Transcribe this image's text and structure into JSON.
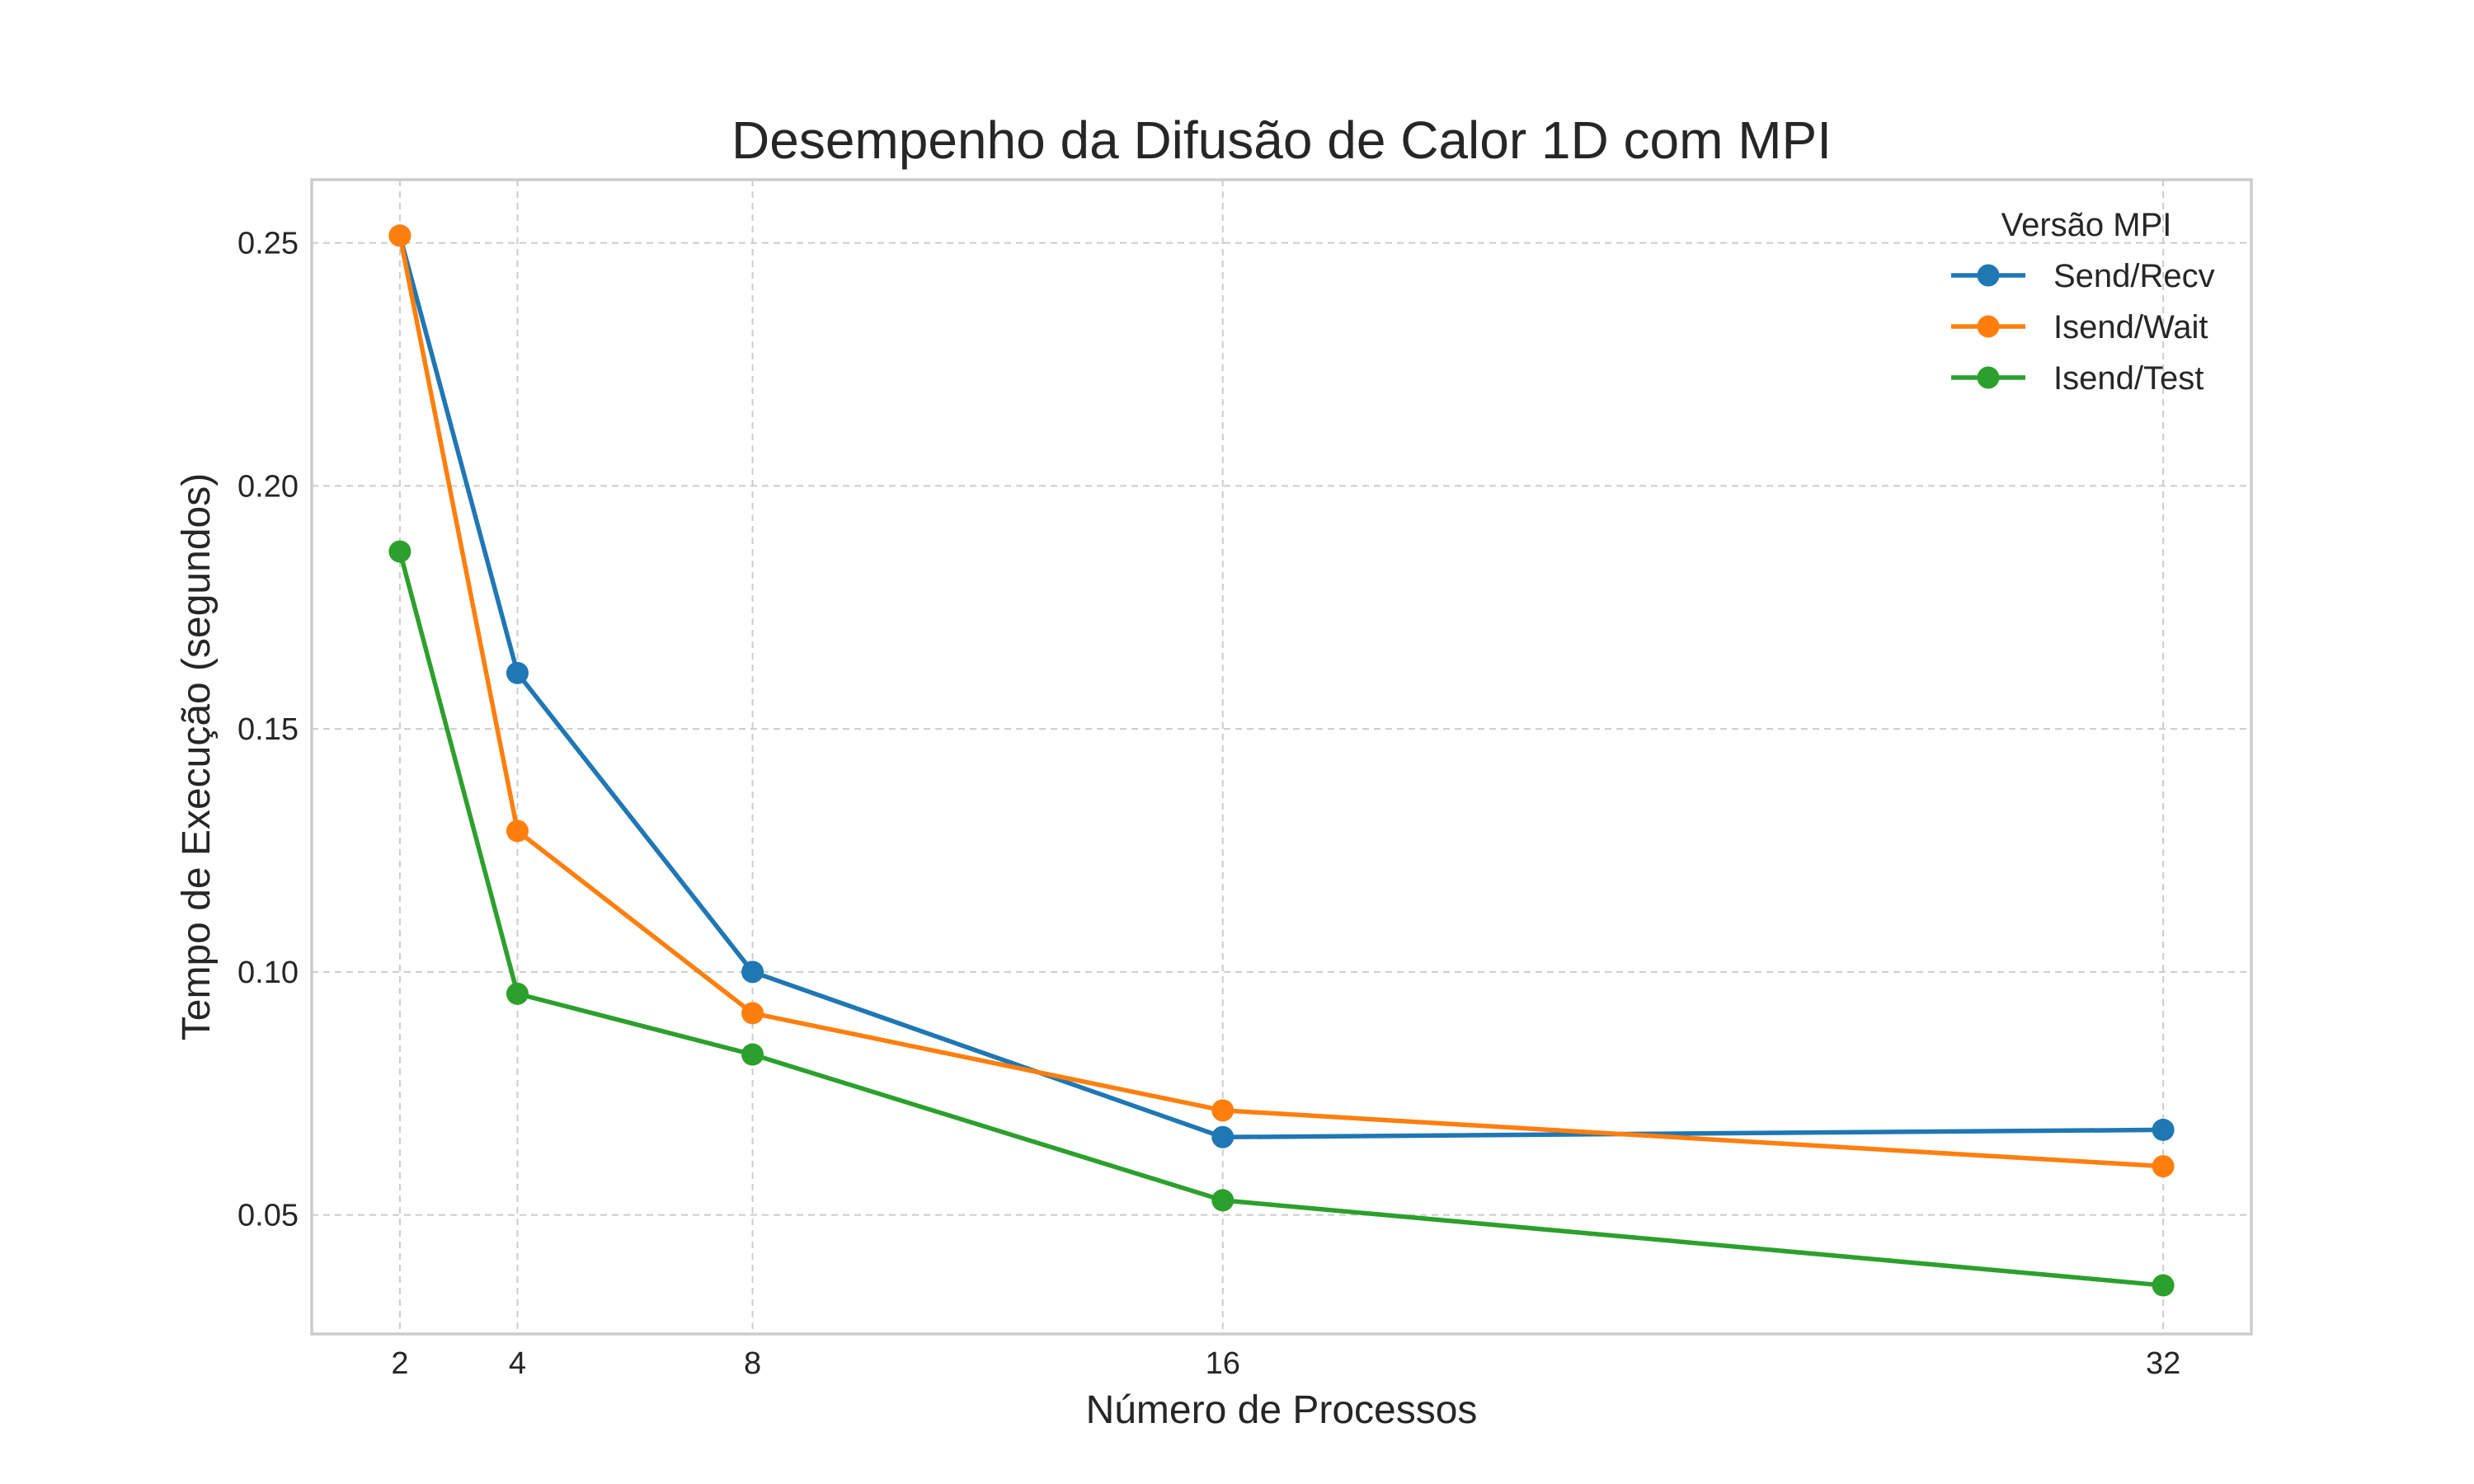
{
  "chart_data": {
    "type": "line",
    "title": "Desempenho da Difusão de Calor 1D com MPI",
    "xlabel": "Número de Processos",
    "ylabel": "Tempo de Execução (segundos)",
    "x": [
      2,
      4,
      8,
      16,
      32
    ],
    "xticks": [
      "2",
      "4",
      "8",
      "16",
      "32"
    ],
    "yticks": [
      "0.05",
      "0.10",
      "0.15",
      "0.20",
      "0.25"
    ],
    "xlim": [
      0.5,
      33.5
    ],
    "ylim": [
      0.0255,
      0.263
    ],
    "grid": true,
    "legend": {
      "title": "Versão MPI",
      "placement": "top-right"
    },
    "series": [
      {
        "name": "Send/Recv",
        "color": "#1f77b4",
        "values": [
          0.2515,
          0.1615,
          0.1,
          0.066,
          0.0675
        ]
      },
      {
        "name": "Isend/Wait",
        "color": "#ff7f0e",
        "values": [
          0.2515,
          0.129,
          0.0915,
          0.0715,
          0.06
        ]
      },
      {
        "name": "Isend/Test",
        "color": "#2ca02c",
        "values": [
          0.1865,
          0.0955,
          0.083,
          0.053,
          0.0355
        ]
      }
    ]
  }
}
